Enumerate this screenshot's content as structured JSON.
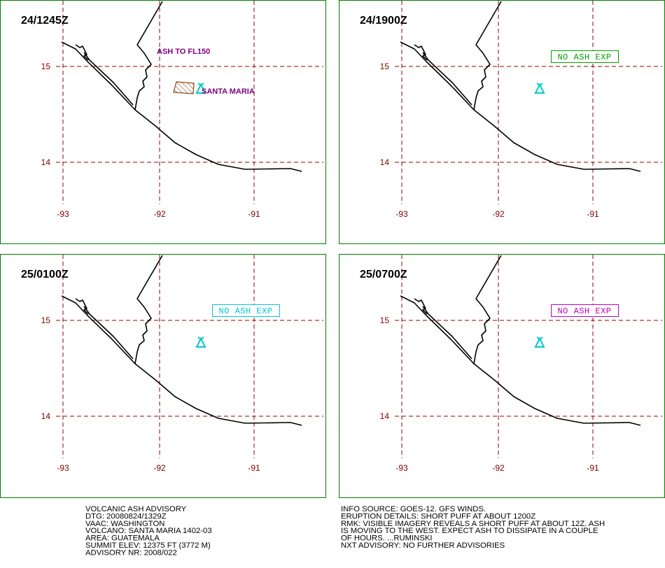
{
  "axes": {
    "lat": [
      "15",
      "14"
    ],
    "lon": [
      "-93",
      "-92",
      "-91"
    ]
  },
  "panels": [
    {
      "time": "24/1245Z",
      "ash_top": "ASH TO FL150",
      "volcano_label": "SANTA MARIA"
    },
    {
      "time": "24/1900Z",
      "status": "NO ASH EXP",
      "status_color": "#00a000"
    },
    {
      "time": "25/0100Z",
      "status": "NO ASH EXP",
      "status_color": "#00c8d0"
    },
    {
      "time": "25/0700Z",
      "status": "NO ASH EXP",
      "status_color": "#c000c0"
    }
  ],
  "advisory": {
    "left": [
      "VOLCANIC ASH ADVISORY",
      "DTG: 20080824/1329Z",
      "VAAC: WASHINGTON",
      "VOLCANO: SANTA MARIA 1402-03",
      "AREA: GUATEMALA",
      "SUMMIT ELEV: 12375 FT (3772 M)",
      "ADVISORY NR: 2008/022"
    ],
    "right": [
      "INFO SOURCE: GOES-12. GFS WINDS.",
      "ERUPTION DETAILS: SHORT PUFF AT ABOUT 1200Z",
      "RMK: VISIBLE IMAGERY REVEALS A SHORT PUFF AT ABOUT 12Z. ASH",
      "IS MOVING TO THE WEST. EXPECT ASH TO DISSIPATE IN A COUPLE",
      "OF HOURS. ...RUMINSKI",
      "NXT ADVISORY: NO FURTHER ADVISORIES"
    ]
  }
}
